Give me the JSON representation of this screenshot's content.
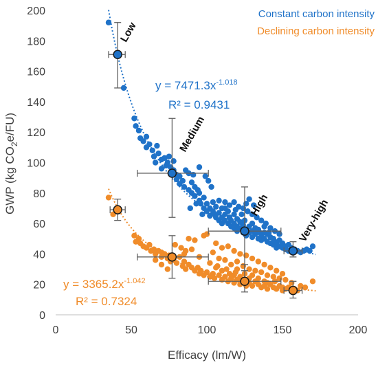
{
  "chart_data": {
    "type": "scatter",
    "xlabel": "Efficacy (lm/W)",
    "ylabel": "GWP (kg CO2e/FU)",
    "xlim": [
      0,
      200
    ],
    "ylim": [
      0,
      200
    ],
    "x_ticks": [
      "0",
      "50",
      "100",
      "150",
      "200"
    ],
    "y_ticks": [
      "0",
      "20",
      "40",
      "60",
      "80",
      "100",
      "120",
      "140",
      "160",
      "180",
      "200"
    ],
    "grid": false,
    "legend_position": "top-right",
    "colors": {
      "constant": "#1f72c8",
      "declining": "#f08c2a",
      "errorbar": "#606060"
    },
    "series": [
      {
        "name": "Constant carbon intensity",
        "trend": {
          "a": 7471.3,
          "b": -1.018
        },
        "equation": {
          "prefix": "y = 7471.3x",
          "exponent": "-1.018",
          "r2": "R² = 0.9431"
        }
      },
      {
        "name": "Declining carbon intensity",
        "trend": {
          "a": 3365.2,
          "b": -1.042
        },
        "equation": {
          "prefix": "y = 3365.2x",
          "exponent": "-1.042",
          "r2": "R² = 0.7324"
        }
      }
    ],
    "scatter_points": {
      "constant": [
        [
          35,
          192
        ],
        [
          45,
          149
        ],
        [
          52,
          129
        ],
        [
          53,
          124
        ],
        [
          55,
          121
        ],
        [
          56,
          116
        ],
        [
          58,
          114
        ],
        [
          60,
          110
        ],
        [
          60,
          117
        ],
        [
          62,
          112
        ],
        [
          64,
          108
        ],
        [
          65,
          104
        ],
        [
          66,
          100
        ],
        [
          67,
          111
        ],
        [
          68,
          106
        ],
        [
          70,
          102
        ],
        [
          70,
          96
        ],
        [
          72,
          103
        ],
        [
          73,
          98
        ],
        [
          74,
          100
        ],
        [
          75,
          104
        ],
        [
          76,
          97
        ],
        [
          78,
          95
        ],
        [
          78,
          101
        ],
        [
          80,
          92
        ],
        [
          80,
          89
        ],
        [
          82,
          91
        ],
        [
          82,
          86
        ],
        [
          84,
          88
        ],
        [
          85,
          84
        ],
        [
          86,
          95
        ],
        [
          88,
          93
        ],
        [
          88,
          82
        ],
        [
          90,
          80
        ],
        [
          90,
          87
        ],
        [
          92,
          84
        ],
        [
          92,
          78
        ],
        [
          94,
          82
        ],
        [
          95,
          80
        ],
        [
          95,
          75
        ],
        [
          96,
          73
        ],
        [
          98,
          77
        ],
        [
          98,
          70
        ],
        [
          100,
          73
        ],
        [
          100,
          68
        ],
        [
          102,
          70
        ],
        [
          102,
          65
        ],
        [
          104,
          74
        ],
        [
          104,
          68
        ],
        [
          105,
          66
        ],
        [
          106,
          71
        ],
        [
          106,
          64
        ],
        [
          108,
          67
        ],
        [
          108,
          62
        ],
        [
          110,
          70
        ],
        [
          110,
          64
        ],
        [
          110,
          60
        ],
        [
          112,
          66
        ],
        [
          112,
          62
        ],
        [
          114,
          68
        ],
        [
          114,
          60
        ],
        [
          115,
          64
        ],
        [
          116,
          58
        ],
        [
          116,
          62
        ],
        [
          118,
          66
        ],
        [
          118,
          60
        ],
        [
          118,
          57
        ],
        [
          120,
          63
        ],
        [
          120,
          58
        ],
        [
          120,
          55
        ],
        [
          122,
          61
        ],
        [
          122,
          57
        ],
        [
          124,
          59
        ],
        [
          124,
          54
        ],
        [
          125,
          62
        ],
        [
          126,
          56
        ],
        [
          126,
          52
        ],
        [
          128,
          58
        ],
        [
          128,
          54
        ],
        [
          130,
          60
        ],
        [
          130,
          55
        ],
        [
          130,
          51
        ],
        [
          132,
          57
        ],
        [
          132,
          53
        ],
        [
          134,
          56
        ],
        [
          134,
          50
        ],
        [
          135,
          54
        ],
        [
          136,
          52
        ],
        [
          136,
          49
        ],
        [
          138,
          54
        ],
        [
          138,
          50
        ],
        [
          140,
          53
        ],
        [
          140,
          48
        ],
        [
          142,
          51
        ],
        [
          142,
          47
        ],
        [
          144,
          50
        ],
        [
          144,
          46
        ],
        [
          145,
          48
        ],
        [
          146,
          47
        ],
        [
          146,
          44
        ],
        [
          148,
          49
        ],
        [
          148,
          45
        ],
        [
          150,
          47
        ],
        [
          150,
          44
        ],
        [
          152,
          45
        ],
        [
          152,
          43
        ],
        [
          154,
          46
        ],
        [
          154,
          42
        ],
        [
          156,
          44
        ],
        [
          158,
          43
        ],
        [
          160,
          42
        ],
        [
          162,
          41
        ],
        [
          164,
          42
        ],
        [
          166,
          43
        ],
        [
          168,
          42
        ],
        [
          170,
          45
        ],
        [
          108,
          75
        ],
        [
          112,
          74
        ],
        [
          115,
          72
        ],
        [
          118,
          74
        ],
        [
          121,
          71
        ],
        [
          124,
          70
        ],
        [
          127,
          68
        ],
        [
          130,
          66
        ],
        [
          133,
          64
        ],
        [
          136,
          62
        ],
        [
          139,
          60
        ],
        [
          142,
          57
        ],
        [
          145,
          55
        ],
        [
          148,
          53
        ],
        [
          128,
          76
        ],
        [
          131,
          72
        ],
        [
          126,
          73
        ],
        [
          112,
          70
        ],
        [
          119,
          69
        ],
        [
          123,
          66
        ],
        [
          138,
          58
        ],
        [
          141,
          54
        ],
        [
          91,
          92
        ],
        [
          95,
          97
        ],
        [
          99,
          91
        ],
        [
          103,
          84
        ],
        [
          101,
          88
        ],
        [
          93,
          73
        ],
        [
          97,
          66
        ],
        [
          89,
          70
        ]
      ],
      "declining": [
        [
          35,
          77
        ],
        [
          41,
          68
        ],
        [
          38,
          66
        ],
        [
          52,
          52
        ],
        [
          53,
          48
        ],
        [
          55,
          50
        ],
        [
          56,
          47
        ],
        [
          58,
          45
        ],
        [
          60,
          44
        ],
        [
          62,
          46
        ],
        [
          63,
          42
        ],
        [
          65,
          43
        ],
        [
          66,
          40
        ],
        [
          68,
          42
        ],
        [
          70,
          38
        ],
        [
          70,
          41
        ],
        [
          72,
          40
        ],
        [
          74,
          37
        ],
        [
          75,
          39
        ],
        [
          76,
          35
        ],
        [
          78,
          36
        ],
        [
          80,
          34
        ],
        [
          82,
          38
        ],
        [
          84,
          32
        ],
        [
          85,
          35
        ],
        [
          86,
          30
        ],
        [
          88,
          33
        ],
        [
          90,
          31
        ],
        [
          92,
          29
        ],
        [
          94,
          31
        ],
        [
          95,
          27
        ],
        [
          96,
          29
        ],
        [
          98,
          26
        ],
        [
          100,
          28
        ],
        [
          102,
          25
        ],
        [
          104,
          27
        ],
        [
          105,
          24
        ],
        [
          106,
          31
        ],
        [
          108,
          26
        ],
        [
          110,
          23
        ],
        [
          110,
          29
        ],
        [
          112,
          25
        ],
        [
          114,
          22
        ],
        [
          115,
          27
        ],
        [
          116,
          24
        ],
        [
          118,
          21
        ],
        [
          118,
          26
        ],
        [
          120,
          23
        ],
        [
          120,
          30
        ],
        [
          122,
          20
        ],
        [
          122,
          25
        ],
        [
          124,
          22
        ],
        [
          125,
          27
        ],
        [
          126,
          19
        ],
        [
          128,
          24
        ],
        [
          128,
          21
        ],
        [
          130,
          26
        ],
        [
          130,
          19
        ],
        [
          132,
          22
        ],
        [
          134,
          20
        ],
        [
          134,
          24
        ],
        [
          136,
          18
        ],
        [
          138,
          22
        ],
        [
          138,
          19
        ],
        [
          140,
          21
        ],
        [
          140,
          17
        ],
        [
          142,
          20
        ],
        [
          144,
          18
        ],
        [
          145,
          22
        ],
        [
          146,
          17
        ],
        [
          148,
          19
        ],
        [
          150,
          18
        ],
        [
          150,
          16
        ],
        [
          152,
          17
        ],
        [
          154,
          18
        ],
        [
          156,
          16
        ],
        [
          158,
          17
        ],
        [
          160,
          16
        ],
        [
          162,
          19
        ],
        [
          165,
          18
        ],
        [
          170,
          22
        ],
        [
          88,
          50
        ],
        [
          92,
          49
        ],
        [
          98,
          52
        ],
        [
          100,
          53
        ],
        [
          106,
          47
        ],
        [
          110,
          44
        ],
        [
          114,
          45
        ],
        [
          118,
          42
        ],
        [
          122,
          40
        ],
        [
          126,
          39
        ],
        [
          130,
          37
        ],
        [
          134,
          35
        ],
        [
          138,
          33
        ],
        [
          142,
          31
        ],
        [
          146,
          29
        ],
        [
          150,
          27
        ],
        [
          104,
          41
        ],
        [
          108,
          37
        ],
        [
          112,
          36
        ],
        [
          116,
          33
        ],
        [
          120,
          35
        ],
        [
          124,
          32
        ],
        [
          128,
          30
        ],
        [
          132,
          29
        ],
        [
          136,
          28
        ],
        [
          140,
          26
        ],
        [
          144,
          25
        ],
        [
          148,
          24
        ],
        [
          152,
          23
        ],
        [
          156,
          21
        ],
        [
          85,
          40
        ],
        [
          90,
          43
        ],
        [
          95,
          38
        ],
        [
          79,
          46
        ],
        [
          83,
          44
        ],
        [
          86,
          42
        ],
        [
          66,
          36
        ],
        [
          70,
          33
        ],
        [
          74,
          30
        ],
        [
          102,
          34
        ],
        [
          107,
          32
        ],
        [
          113,
          30
        ],
        [
          119,
          28
        ]
      ]
    },
    "highlight_points": {
      "constant": [
        {
          "label": "Low",
          "x": 41,
          "y": 171,
          "xerr": [
            35,
            46
          ],
          "yerr": [
            149,
            192
          ]
        },
        {
          "label": "Medium",
          "x": 77,
          "y": 93,
          "xerr": [
            54,
            101
          ],
          "yerr": [
            64,
            129
          ]
        },
        {
          "label": "High",
          "x": 125,
          "y": 55,
          "xerr": [
            101,
            149
          ],
          "yerr": [
            29,
            84
          ]
        },
        {
          "label": "Very-high",
          "x": 157,
          "y": 42,
          "xerr": [
            151,
            163
          ],
          "yerr": [
            38,
            48
          ]
        }
      ],
      "declining": [
        {
          "x": 41,
          "y": 69,
          "xerr": [
            36,
            46
          ],
          "yerr": [
            62,
            76
          ]
        },
        {
          "x": 77,
          "y": 38,
          "xerr": [
            54,
            101
          ],
          "yerr": [
            24,
            52
          ]
        },
        {
          "x": 125,
          "y": 22,
          "xerr": [
            101,
            149
          ],
          "yerr": [
            15,
            33
          ]
        },
        {
          "x": 157,
          "y": 16,
          "xerr": [
            151,
            163
          ],
          "yerr": [
            11,
            22
          ]
        }
      ]
    }
  }
}
